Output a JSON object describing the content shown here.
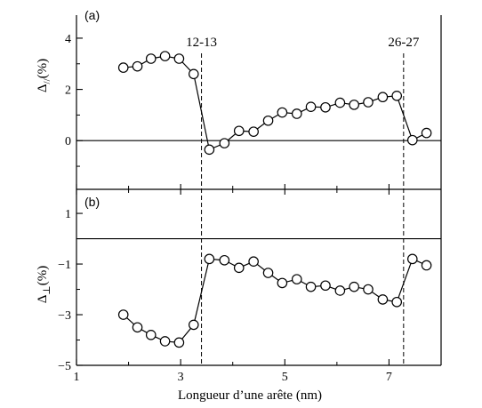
{
  "chart_data": [
    {
      "type": "line",
      "panel_label": "(a)",
      "ylabel_main": "Δ",
      "ylabel_sub": "//",
      "ylabel_unit": "(%)",
      "xlim": [
        1,
        8
      ],
      "ylim": [
        -1.9,
        4.9
      ],
      "yticks": [
        0,
        2,
        4
      ],
      "ytick_labels": [
        "0",
        "2",
        "4"
      ],
      "reference_line_y": 0,
      "x": [
        1.9,
        2.17,
        2.43,
        2.7,
        2.97,
        3.25,
        3.55,
        3.84,
        4.12,
        4.4,
        4.68,
        4.95,
        5.23,
        5.5,
        5.78,
        6.06,
        6.33,
        6.6,
        6.88,
        7.15,
        7.45,
        7.72
      ],
      "y": [
        2.85,
        2.9,
        3.2,
        3.3,
        3.2,
        2.6,
        -0.35,
        -0.1,
        0.38,
        0.35,
        0.78,
        1.1,
        1.05,
        1.32,
        1.3,
        1.48,
        1.4,
        1.5,
        1.7,
        1.75,
        0.02,
        0.3
      ]
    },
    {
      "type": "line",
      "panel_label": "(b)",
      "ylabel_main": "Δ",
      "ylabel_sub": "⊥",
      "ylabel_unit": "(%)",
      "xlim": [
        1,
        8
      ],
      "ylim": [
        -5.0,
        1.95
      ],
      "yticks": [
        1,
        -1,
        -3,
        -5
      ],
      "ytick_labels": [
        "1",
        "−1",
        "−3",
        "−5"
      ],
      "reference_line_y": 0,
      "x": [
        1.9,
        2.17,
        2.43,
        2.7,
        2.97,
        3.25,
        3.55,
        3.84,
        4.12,
        4.4,
        4.68,
        4.95,
        5.23,
        5.5,
        5.78,
        6.06,
        6.33,
        6.6,
        6.88,
        7.15,
        7.45,
        7.72
      ],
      "y": [
        -3.0,
        -3.5,
        -3.8,
        -4.05,
        -4.1,
        -3.4,
        -0.8,
        -0.85,
        -1.15,
        -0.9,
        -1.35,
        -1.75,
        -1.6,
        -1.9,
        -1.85,
        -2.05,
        -1.9,
        -2.0,
        -2.4,
        -2.5,
        -0.8,
        -1.05
      ]
    }
  ],
  "x_axis": {
    "label": "Longueur d’une arête (nm)",
    "ticks": [
      1,
      3,
      5,
      7
    ],
    "tick_labels": [
      "1",
      "3",
      "5",
      "7"
    ]
  },
  "annotations": [
    {
      "text": "12-13",
      "x": 3.4
    },
    {
      "text": "26-27",
      "x": 7.28
    }
  ]
}
